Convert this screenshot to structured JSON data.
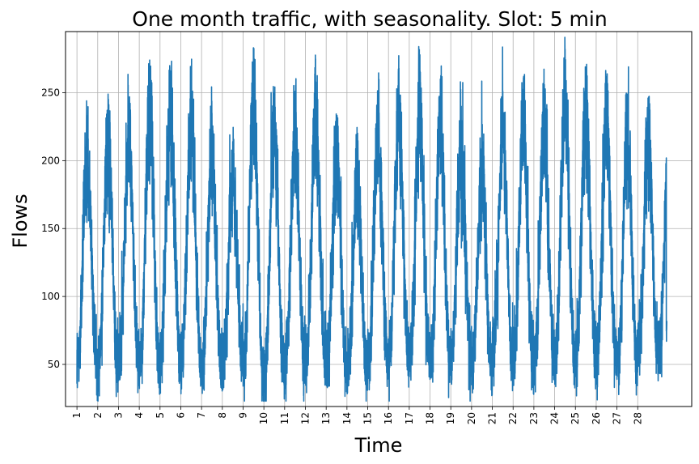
{
  "chart_data": {
    "type": "line",
    "title": "One month traffic, with seasonality. Slot: 5 min",
    "xlabel": "Time",
    "ylabel": "Flows",
    "x_tick_labels": [
      "1",
      "2",
      "3",
      "4",
      "5",
      "6",
      "7",
      "8",
      "9",
      "10",
      "11",
      "12",
      "13",
      "14",
      "15",
      "16",
      "17",
      "18",
      "19",
      "20",
      "21",
      "22",
      "23",
      "24",
      "25",
      "26",
      "27",
      "28"
    ],
    "y_ticks": [
      50,
      100,
      150,
      200,
      250
    ],
    "xlim_days": [
      -0.55,
      29.6
    ],
    "ylim": [
      19,
      295
    ],
    "days_plotted": 28.4,
    "slot_minutes": 5,
    "grid": true,
    "line_color": "#1f77b4",
    "daily_peaks": [
      233,
      249,
      244,
      274,
      266,
      262,
      235,
      214,
      283,
      250,
      251,
      258,
      229,
      206,
      251,
      268,
      274,
      260,
      240,
      218,
      251,
      261,
      256,
      282,
      267,
      262,
      249,
      246
    ],
    "daily_troughs": [
      40,
      37,
      43,
      34,
      45,
      37,
      35,
      41,
      34,
      31,
      40,
      42,
      38,
      35,
      40,
      44,
      41,
      39,
      42,
      35,
      44,
      40,
      45,
      41,
      44,
      43,
      39,
      50
    ],
    "end_value": 75
  }
}
